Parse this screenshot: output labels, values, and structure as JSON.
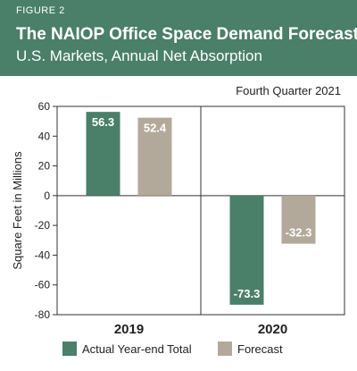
{
  "header": {
    "figure_label": "FIGURE 2",
    "title": "The NAIOP Office Space Demand Forecast",
    "subtitle": "U.S. Markets, Annual Net Absorption",
    "background_color": "#4a7f6a"
  },
  "period_label": "Fourth Quarter 2021",
  "chart_data": {
    "type": "bar",
    "categories": [
      "2019",
      "2020"
    ],
    "series": [
      {
        "name": "Actual Year-end Total",
        "color": "#4a7f6a",
        "values": [
          56.3,
          -73.3
        ],
        "labels": [
          "56.3",
          "-73.3"
        ]
      },
      {
        "name": "Forecast",
        "color": "#b3a99a",
        "values": [
          52.4,
          -32.3
        ],
        "labels": [
          "52.4",
          "-32.3"
        ]
      }
    ],
    "ylabel": "Square Feet in Millions",
    "ylim": [
      -80,
      60
    ],
    "yticks": [
      60,
      40,
      20,
      0,
      -20,
      -40,
      -60,
      -80
    ],
    "ytick_labels": [
      "60",
      "40",
      "20",
      "0",
      "-20",
      "-40",
      "-60",
      "-80"
    ],
    "grid": false,
    "legend_position": "bottom"
  }
}
